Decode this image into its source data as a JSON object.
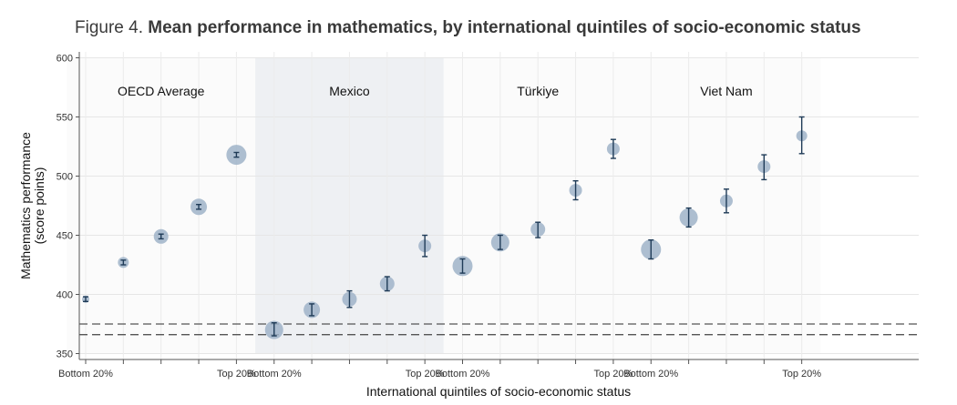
{
  "title": {
    "prefix": "Figure 4. ",
    "main": "Mean performance in mathematics, by international quintiles of socio-economic status"
  },
  "chart_data": {
    "type": "scatter",
    "xlabel": "International quintiles of socio-economic status",
    "ylabel_lines": [
      "Mathematics performance",
      "(score points)"
    ],
    "ylim": [
      345,
      605
    ],
    "yticks": [
      350,
      400,
      450,
      500,
      550,
      600
    ],
    "grid": true,
    "quintile_labels": [
      "Bottom 20%",
      "",
      "",
      "",
      "Top 20%"
    ],
    "reference_lines": [
      375,
      366
    ],
    "colors": {
      "point": "#9fb3c8",
      "error_bar": "#1f3b57",
      "highlight_panel": "#eef0f3",
      "reference_line": "#555555"
    },
    "panels": [
      {
        "name": "OECD Average",
        "highlight": false,
        "series": [
          {
            "quintile": 1,
            "mean": 396,
            "low": 394,
            "high": 398,
            "size": 4
          },
          {
            "quintile": 2,
            "mean": 427,
            "low": 425,
            "high": 429,
            "size": 6
          },
          {
            "quintile": 3,
            "mean": 449,
            "low": 447,
            "high": 451,
            "size": 8
          },
          {
            "quintile": 4,
            "mean": 474,
            "low": 472,
            "high": 476,
            "size": 9
          },
          {
            "quintile": 5,
            "mean": 518,
            "low": 516,
            "high": 520,
            "size": 11
          }
        ]
      },
      {
        "name": "Mexico",
        "highlight": true,
        "series": [
          {
            "quintile": 1,
            "mean": 370,
            "low": 365,
            "high": 376,
            "size": 10
          },
          {
            "quintile": 2,
            "mean": 387,
            "low": 382,
            "high": 392,
            "size": 9
          },
          {
            "quintile": 3,
            "mean": 396,
            "low": 389,
            "high": 403,
            "size": 8
          },
          {
            "quintile": 4,
            "mean": 409,
            "low": 403,
            "high": 415,
            "size": 8
          },
          {
            "quintile": 5,
            "mean": 441,
            "low": 432,
            "high": 450,
            "size": 7
          }
        ]
      },
      {
        "name": "Türkiye",
        "highlight": false,
        "series": [
          {
            "quintile": 1,
            "mean": 424,
            "low": 418,
            "high": 430,
            "size": 11
          },
          {
            "quintile": 2,
            "mean": 444,
            "low": 438,
            "high": 450,
            "size": 10
          },
          {
            "quintile": 3,
            "mean": 455,
            "low": 448,
            "high": 461,
            "size": 8
          },
          {
            "quintile": 4,
            "mean": 488,
            "low": 480,
            "high": 496,
            "size": 7
          },
          {
            "quintile": 5,
            "mean": 523,
            "low": 515,
            "high": 531,
            "size": 7
          }
        ]
      },
      {
        "name": "Viet Nam",
        "highlight": false,
        "series": [
          {
            "quintile": 1,
            "mean": 438,
            "low": 430,
            "high": 446,
            "size": 11
          },
          {
            "quintile": 2,
            "mean": 465,
            "low": 457,
            "high": 473,
            "size": 10
          },
          {
            "quintile": 3,
            "mean": 479,
            "low": 469,
            "high": 489,
            "size": 7
          },
          {
            "quintile": 4,
            "mean": 508,
            "low": 497,
            "high": 518,
            "size": 7
          },
          {
            "quintile": 5,
            "mean": 534,
            "low": 519,
            "high": 550,
            "size": 6
          }
        ]
      }
    ]
  }
}
